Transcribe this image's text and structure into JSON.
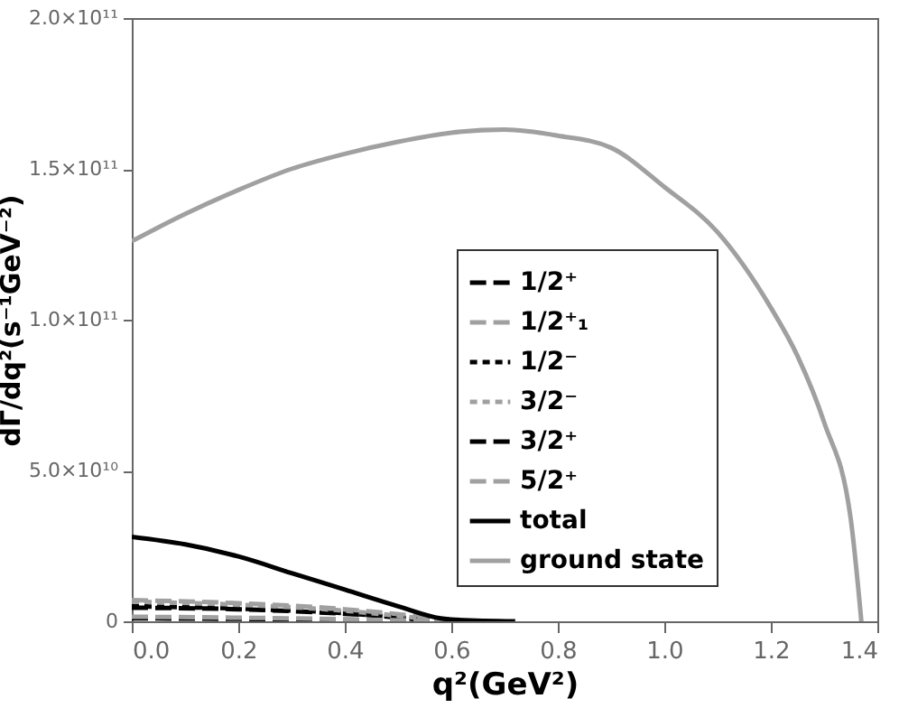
{
  "chart_data": {
    "type": "line",
    "xlabel": "q²(GeV²)",
    "ylabel": "dΓ/dq²(s⁻¹GeV⁻²)",
    "xlim": [
      0,
      1.4
    ],
    "ylim": [
      0,
      200000000000
    ],
    "xticks": [
      {
        "value": 0,
        "label": "0.0"
      },
      0.2,
      0.4,
      0.6,
      0.8,
      {
        "value": 1,
        "label": "1.0"
      },
      1.2,
      1.4
    ],
    "yticks": [
      0,
      {
        "value": 50000000000,
        "label": "5.0×10¹⁰"
      },
      {
        "value": 100000000000,
        "label": "1.0×10¹¹"
      },
      {
        "value": 150000000000,
        "label": "1.5×10¹¹"
      },
      {
        "value": 200000000000,
        "label": "2.0×10¹¹"
      }
    ],
    "legend": "right",
    "grid": false,
    "series": [
      {
        "name": "1/2⁺",
        "color": "#000000",
        "line_style": "dashed",
        "x": [
          0,
          0.2,
          0.4,
          0.6
        ],
        "values": [
          4500000000,
          4000000000,
          2500000000,
          0
        ]
      },
      {
        "name": "1/2⁺₁",
        "color": "#a0a0a0",
        "line_style": "dashed",
        "x": [
          0,
          0.2,
          0.4,
          0.62
        ],
        "values": [
          7000000000,
          6000000000,
          4000000000,
          0
        ]
      },
      {
        "name": "1/2⁻",
        "color": "#000000",
        "line_style": "dotted",
        "x": [
          0,
          0.2,
          0.4,
          0.57
        ],
        "values": [
          5000000000,
          4200000000,
          2700000000,
          0
        ]
      },
      {
        "name": "3/2⁻",
        "color": "#a0a0a0",
        "line_style": "dotted",
        "x": [
          0,
          0.2,
          0.4,
          0.59
        ],
        "values": [
          6500000000,
          5500000000,
          3500000000,
          0
        ]
      },
      {
        "name": "3/2⁺",
        "color": "#000000",
        "line_style": "dashed",
        "x": [
          0,
          0.2,
          0.4,
          0.55
        ],
        "values": [
          1000000000,
          800000000,
          500000000,
          0
        ]
      },
      {
        "name": "5/2⁺",
        "color": "#a0a0a0",
        "line_style": "dashed",
        "x": [
          0,
          0.2,
          0.4,
          0.58
        ],
        "values": [
          1500000000,
          1200000000,
          700000000,
          0
        ]
      },
      {
        "name": "total",
        "color": "#000000",
        "line_style": "solid",
        "x": [
          0,
          0.1,
          0.2,
          0.3,
          0.4,
          0.5,
          0.58,
          0.6,
          0.72
        ],
        "values": [
          28000000000,
          25500000000,
          21500000000,
          16000000000,
          10500000000,
          5000000000,
          1000000000,
          600000000,
          0
        ]
      },
      {
        "name": "ground state",
        "color": "#a0a0a0",
        "line_style": "solid",
        "x": [
          0,
          0.1,
          0.2,
          0.3,
          0.4,
          0.5,
          0.6,
          0.7,
          0.8,
          0.9,
          1.0,
          1.1,
          1.2,
          1.25,
          1.3,
          1.35,
          1.37
        ],
        "values": [
          126000000000,
          135000000000,
          143000000000,
          150000000000,
          155000000000,
          159000000000,
          162000000000,
          163000000000,
          161000000000,
          157000000000,
          144000000000,
          129000000000,
          104000000000,
          88000000000,
          66000000000,
          34000000000,
          0
        ]
      }
    ]
  }
}
